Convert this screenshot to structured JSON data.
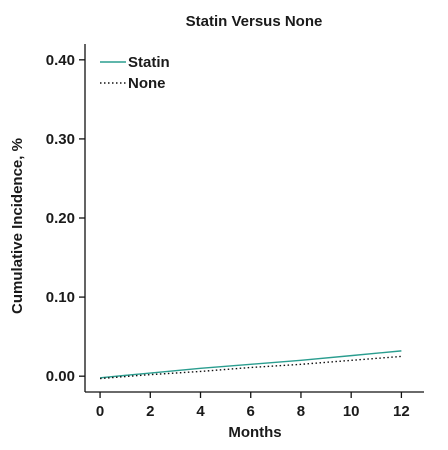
{
  "chart_data": {
    "type": "line",
    "title": "Statin Versus None",
    "xlabel": "Months",
    "ylabel": "Cumulative Incidence, %",
    "xlim": [
      -0.6,
      12.9
    ],
    "ylim": [
      -0.02,
      0.42
    ],
    "x_ticks": [
      0,
      2,
      4,
      6,
      8,
      10,
      12
    ],
    "x_tick_labels": [
      "0",
      "2",
      "4",
      "6",
      "8",
      "10",
      "12"
    ],
    "y_ticks": [
      0.0,
      0.1,
      0.2,
      0.3,
      0.4
    ],
    "y_tick_labels": [
      "0.00",
      "0.10",
      "0.20",
      "0.30",
      "0.40"
    ],
    "grid": false,
    "legend_position": "top-left",
    "series": [
      {
        "name": "Statin",
        "color": "#2a9d8f",
        "style": "solid",
        "x": [
          0,
          2,
          4,
          6,
          8,
          10,
          12
        ],
        "y": [
          -0.002,
          0.004,
          0.01,
          0.015,
          0.02,
          0.026,
          0.032
        ]
      },
      {
        "name": "None",
        "color": "#111111",
        "style": "dotted",
        "x": [
          0,
          2,
          4,
          6,
          8,
          10,
          12
        ],
        "y": [
          -0.003,
          0.002,
          0.006,
          0.011,
          0.015,
          0.02,
          0.025
        ]
      }
    ]
  }
}
